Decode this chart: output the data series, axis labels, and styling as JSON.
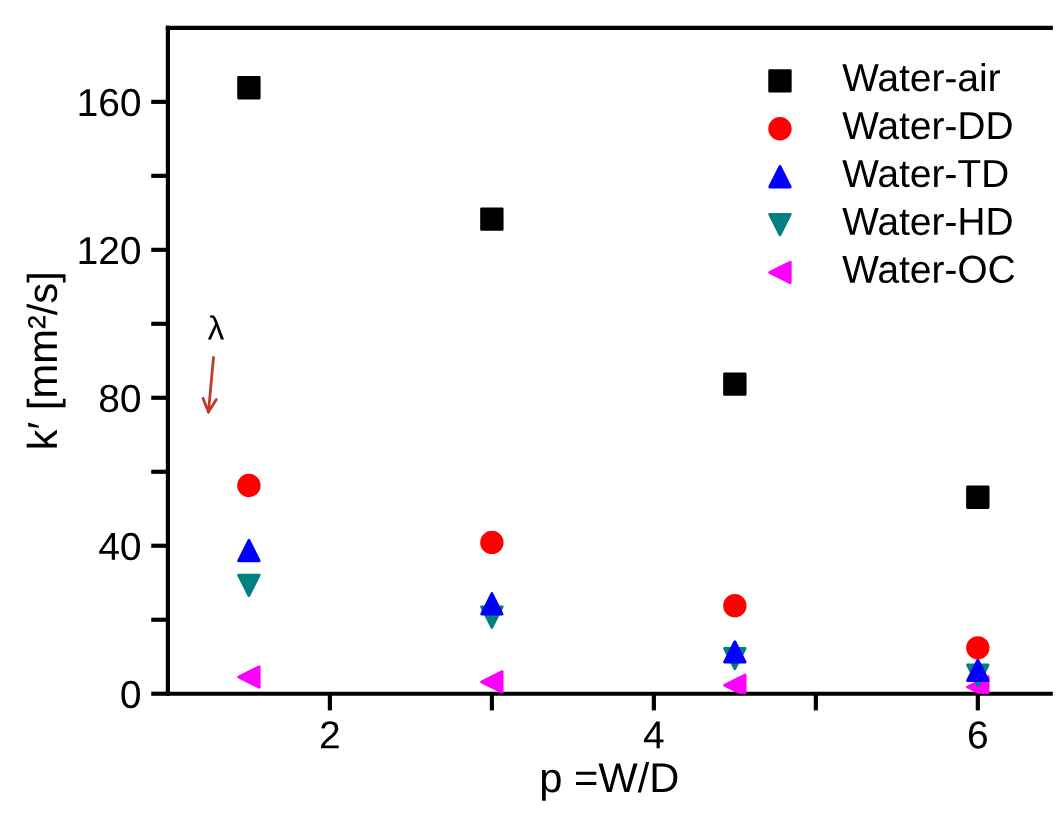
{
  "chart_data": {
    "type": "scatter",
    "xlabel": "p =W/D",
    "ylabel": "k′ [mm²/s]",
    "x": [
      1.5,
      3,
      4.5,
      6
    ],
    "series": [
      {
        "name": "Water-air",
        "color": "#000000",
        "marker": "square",
        "values": [
          163.8,
          128.3,
          83.7,
          53.1
        ]
      },
      {
        "name": "Water-DD",
        "color": "#ff0000",
        "marker": "circle",
        "values": [
          56.3,
          40.9,
          23.8,
          12.4
        ]
      },
      {
        "name": "Water-TD",
        "color": "#0000ff",
        "marker": "triangle",
        "values": [
          38.7,
          24.3,
          11.3,
          6.3
        ]
      },
      {
        "name": "Water-HD",
        "color": "#008080",
        "marker": "triangle-down",
        "values": [
          29.3,
          20.7,
          9.5,
          5.0
        ]
      },
      {
        "name": "Water-OC",
        "color": "#ff00ff",
        "marker": "triangle-left",
        "values": [
          4.5,
          3.2,
          2.3,
          1.8
        ]
      }
    ],
    "xlim": [
      1,
      6.45
    ],
    "xticks": [
      2,
      {
        "value": 3,
        "label": null
      },
      4,
      {
        "value": 5,
        "label": null
      },
      6
    ],
    "ylim": [
      0,
      180
    ],
    "yticks": [
      0,
      {
        "value": 20,
        "label": null
      },
      40,
      {
        "value": 60,
        "label": null
      },
      80,
      {
        "value": 100,
        "label": null
      },
      120,
      {
        "value": 140,
        "label": null
      },
      160
    ],
    "annotations": [
      "λ"
    ],
    "legend": "top right",
    "grid": false
  }
}
